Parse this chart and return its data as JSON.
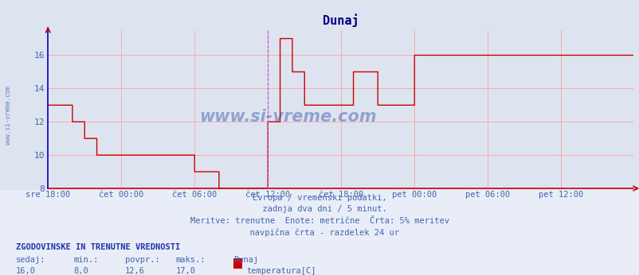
{
  "title": "Dunaj",
  "title_color": "#000080",
  "plot_bg_color": "#dde4f0",
  "lower_bg_color": "#e8eef8",
  "fig_bg_color": "#dde4f0",
  "line_color": "#cc0000",
  "grid_color": "#ffaaaa",
  "spine_color": "#0000cc",
  "text_color": "#4466aa",
  "watermark_color": "#3355aa",
  "vline_color": "#cc44cc",
  "x_tick_labels": [
    "sre 18:00",
    "čet 00:00",
    "čet 06:00",
    "čet 12:00",
    "čet 18:00",
    "pet 00:00",
    "pet 06:00",
    "pet 12:00"
  ],
  "x_tick_positions": [
    0,
    72,
    144,
    216,
    288,
    360,
    432,
    504
  ],
  "ylim": [
    8,
    17.5
  ],
  "yticks": [
    8,
    10,
    12,
    14,
    16
  ],
  "subtitle_lines": [
    "Evropa / vremenski podatki,",
    "  zadnja dva dni / 5 minut.",
    "Meritve: trenutne  Enote: metrične  Črta: 5% meritev",
    "  navpična črta - razdelek 24 ur"
  ],
  "legend_header": "ZGODOVINSKE IN TRENUTNE VREDNOSTI",
  "legend_labels": [
    "sedaj:",
    "min.:",
    "povpr.:",
    "maks.:"
  ],
  "legend_values": [
    "16,0",
    "8,0",
    "12,6",
    "17,0"
  ],
  "legend_series": "Dunaj",
  "legend_series_label": "temperatura[C]",
  "legend_series_color": "#cc0000",
  "watermark": "www.si-vreme.com",
  "vline_x": 216,
  "total_points": 576,
  "data_y": [
    13,
    13,
    13,
    13,
    13,
    13,
    13,
    13,
    13,
    13,
    13,
    13,
    13,
    13,
    13,
    13,
    13,
    13,
    13,
    13,
    13,
    13,
    13,
    13,
    12,
    12,
    12,
    12,
    12,
    12,
    12,
    12,
    12,
    12,
    12,
    12,
    11,
    11,
    11,
    11,
    11,
    11,
    11,
    11,
    11,
    11,
    11,
    11,
    10,
    10,
    10,
    10,
    10,
    10,
    10,
    10,
    10,
    10,
    10,
    10,
    10,
    10,
    10,
    10,
    10,
    10,
    10,
    10,
    10,
    10,
    10,
    10,
    10,
    10,
    10,
    10,
    10,
    10,
    10,
    10,
    10,
    10,
    10,
    10,
    10,
    10,
    10,
    10,
    10,
    10,
    10,
    10,
    10,
    10,
    10,
    10,
    10,
    10,
    10,
    10,
    10,
    10,
    10,
    10,
    10,
    10,
    10,
    10,
    10,
    10,
    10,
    10,
    10,
    10,
    10,
    10,
    10,
    10,
    10,
    10,
    10,
    10,
    10,
    10,
    10,
    10,
    10,
    10,
    10,
    10,
    10,
    10,
    10,
    10,
    10,
    10,
    10,
    10,
    10,
    10,
    10,
    10,
    10,
    10,
    9,
    9,
    9,
    9,
    9,
    9,
    9,
    9,
    9,
    9,
    9,
    9,
    9,
    9,
    9,
    9,
    9,
    9,
    9,
    9,
    9,
    9,
    9,
    9,
    8,
    8,
    8,
    8,
    8,
    8,
    8,
    8,
    8,
    8,
    8,
    8,
    8,
    8,
    8,
    8,
    8,
    8,
    8,
    8,
    8,
    8,
    8,
    8,
    8,
    8,
    8,
    8,
    8,
    8,
    8,
    8,
    8,
    8,
    8,
    8,
    8,
    8,
    8,
    8,
    8,
    8,
    8,
    8,
    8,
    8,
    8,
    8,
    12,
    12,
    12,
    12,
    12,
    12,
    12,
    12,
    12,
    12,
    12,
    12,
    17,
    17,
    17,
    17,
    17,
    17,
    17,
    17,
    17,
    17,
    17,
    17,
    15,
    15,
    15,
    15,
    15,
    15,
    15,
    15,
    15,
    15,
    15,
    15,
    13,
    13,
    13,
    13,
    13,
    13,
    13,
    13,
    13,
    13,
    13,
    13,
    13,
    13,
    13,
    13,
    13,
    13,
    13,
    13,
    13,
    13,
    13,
    13,
    13,
    13,
    13,
    13,
    13,
    13,
    13,
    13,
    13,
    13,
    13,
    13,
    13,
    13,
    13,
    13,
    13,
    13,
    13,
    13,
    13,
    13,
    13,
    13,
    15,
    15,
    15,
    15,
    15,
    15,
    15,
    15,
    15,
    15,
    15,
    15,
    15,
    15,
    15,
    15,
    15,
    15,
    15,
    15,
    15,
    15,
    15,
    15,
    13,
    13,
    13,
    13,
    13,
    13,
    13,
    13,
    13,
    13,
    13,
    13,
    13,
    13,
    13,
    13,
    13,
    13,
    13,
    13,
    13,
    13,
    13,
    13,
    13,
    13,
    13,
    13,
    13,
    13,
    13,
    13,
    13,
    13,
    13,
    13,
    16,
    16,
    16,
    16,
    16,
    16,
    16,
    16,
    16,
    16,
    16,
    16,
    16,
    16,
    16,
    16,
    16,
    16,
    16,
    16,
    16,
    16,
    16,
    16,
    16,
    16,
    16,
    16,
    16,
    16,
    16,
    16,
    16,
    16,
    16,
    16,
    16,
    16,
    16,
    16,
    16,
    16,
    16,
    16,
    16,
    16,
    16,
    16,
    16,
    16,
    16,
    16,
    16,
    16,
    16,
    16,
    16,
    16,
    16,
    16,
    16,
    16,
    16,
    16,
    16,
    16,
    16,
    16,
    16,
    16,
    16,
    16,
    16,
    16,
    16,
    16,
    16,
    16,
    16,
    16,
    16,
    16,
    16,
    16,
    16,
    16,
    16,
    16,
    16,
    16,
    16,
    16,
    16,
    16,
    16,
    16,
    16,
    16,
    16,
    16,
    16,
    16,
    16,
    16,
    16,
    16,
    16,
    16,
    16,
    16,
    16,
    16,
    16,
    16,
    16,
    16,
    16,
    16,
    16,
    16,
    16,
    16,
    16,
    16,
    16,
    16,
    16,
    16,
    16,
    16,
    16,
    16,
    16,
    16,
    16,
    16,
    16,
    16,
    16,
    16,
    16,
    16,
    16,
    16,
    16,
    16,
    16,
    16,
    16,
    16,
    16,
    16,
    16,
    16,
    16,
    16,
    16,
    16,
    16,
    16,
    16,
    16,
    16,
    16,
    16,
    16,
    16,
    16,
    16,
    16,
    16,
    16,
    16,
    16,
    16,
    16,
    16,
    16,
    16,
    16,
    16,
    16,
    16,
    16,
    16,
    16,
    16,
    16,
    16,
    16,
    16,
    16,
    16,
    16,
    16,
    16,
    16,
    16,
    16,
    16,
    16,
    16,
    16,
    16,
    16,
    16,
    16,
    16,
    16,
    16,
    16,
    16,
    16,
    16,
    16,
    16
  ]
}
